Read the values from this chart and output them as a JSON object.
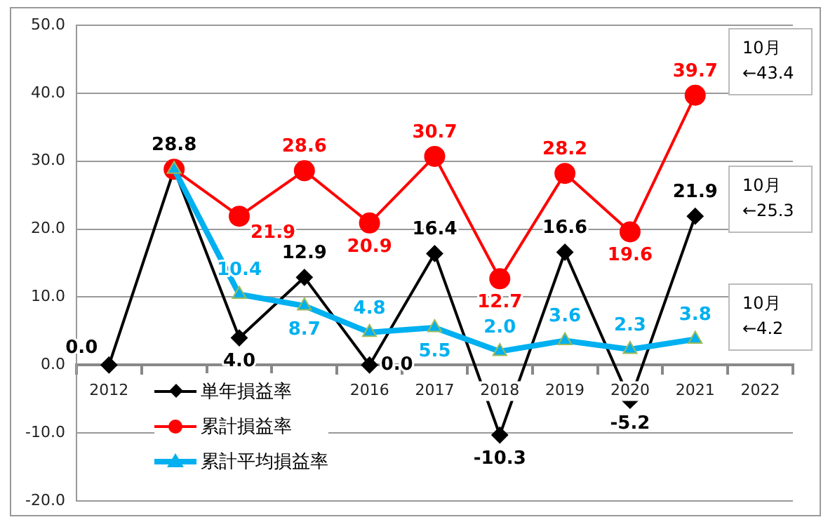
{
  "chart_data": {
    "type": "line",
    "categories": [
      "2012",
      null,
      null,
      null,
      "2016",
      "2017",
      "2018",
      "2019",
      "2020",
      "2021",
      "2022"
    ],
    "series": [
      {
        "name": "単年損益率",
        "color": "#000000",
        "marker": "diamond",
        "values": [
          0.0,
          28.8,
          4.0,
          12.9,
          0.0,
          16.4,
          -10.3,
          16.6,
          -5.2,
          21.9,
          null
        ],
        "value_labels": [
          "0.0",
          "28.8",
          "4.0",
          "12.9",
          "0.0",
          "16.4",
          "-10.3",
          "16.6",
          "-5.2",
          "21.9",
          null
        ]
      },
      {
        "name": "累計損益率",
        "color": "#ff0000",
        "marker": "circle",
        "values": [
          null,
          28.8,
          21.9,
          28.6,
          20.9,
          30.7,
          12.7,
          28.2,
          19.6,
          39.7,
          null
        ],
        "value_labels": [
          null,
          null,
          "21.9",
          "28.6",
          "20.9",
          "30.7",
          "12.7",
          "28.2",
          "19.6",
          "39.7",
          null
        ]
      },
      {
        "name": "累計平均損益率",
        "color": "#00b0f0",
        "marker": "triangle",
        "values": [
          null,
          28.8,
          10.4,
          8.7,
          4.8,
          5.5,
          2.0,
          3.6,
          2.3,
          3.8,
          null
        ],
        "value_labels": [
          null,
          null,
          "10.4",
          "8.7",
          "4.8",
          "5.5",
          "2.0",
          "3.6",
          "2.3",
          "3.8",
          null
        ]
      }
    ],
    "ylim": [
      -20,
      50
    ],
    "yticks": [
      {
        "value": -20,
        "label": "-20.0"
      },
      {
        "value": -10,
        "label": "-10.0"
      },
      {
        "value": 0,
        "label": "0.0"
      },
      {
        "value": 10,
        "label": "10.0"
      },
      {
        "value": 20,
        "label": "20.0"
      },
      {
        "value": 30,
        "label": "30.0"
      },
      {
        "value": 40,
        "label": "40.0"
      },
      {
        "value": 50,
        "label": "50.0"
      }
    ],
    "grid": "y",
    "legend": "bottom left",
    "line_style": "solid",
    "annotations": [
      "10月\n←43.4",
      "10月\n←25.3",
      "10月\n←4.2"
    ]
  }
}
